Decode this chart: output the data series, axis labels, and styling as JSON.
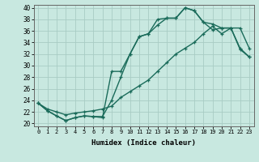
{
  "xlabel": "Humidex (Indice chaleur)",
  "background_color": "#c8e8e0",
  "grid_color": "#a8ccc4",
  "line_color": "#1a6b5a",
  "xlim": [
    -0.5,
    23.5
  ],
  "ylim": [
    19.5,
    40.5
  ],
  "xticks": [
    0,
    1,
    2,
    3,
    4,
    5,
    6,
    7,
    8,
    9,
    10,
    11,
    12,
    13,
    14,
    15,
    16,
    17,
    18,
    19,
    20,
    21,
    22,
    23
  ],
  "yticks": [
    20,
    22,
    24,
    26,
    28,
    30,
    32,
    34,
    36,
    38,
    40
  ],
  "curve1_x": [
    0,
    1,
    2,
    3,
    4,
    5,
    6,
    7,
    8,
    9,
    10,
    11,
    12,
    13,
    14,
    15,
    16,
    17,
    18,
    19,
    20,
    21,
    22,
    23
  ],
  "curve1_y": [
    23.5,
    22.2,
    21.3,
    20.5,
    21.0,
    21.3,
    21.2,
    21.2,
    24.0,
    28.0,
    32.0,
    35.0,
    35.5,
    37.0,
    38.2,
    38.2,
    40.0,
    39.5,
    37.5,
    37.2,
    36.5,
    36.5,
    36.5,
    33.0
  ],
  "curve2_x": [
    0,
    1,
    2,
    3,
    4,
    5,
    6,
    7,
    8,
    9,
    10,
    11,
    12,
    13,
    14,
    15,
    16,
    17,
    18,
    19,
    20,
    21,
    22,
    23
  ],
  "curve2_y": [
    23.5,
    22.2,
    21.3,
    20.5,
    21.0,
    21.3,
    21.2,
    21.0,
    29.0,
    29.0,
    32.0,
    35.0,
    35.5,
    38.0,
    38.2,
    38.2,
    40.0,
    39.5,
    37.5,
    36.2,
    36.5,
    36.5,
    33.0,
    31.5
  ],
  "curve3_x": [
    0,
    1,
    2,
    3,
    4,
    5,
    6,
    7,
    8,
    9,
    10,
    11,
    12,
    13,
    14,
    15,
    16,
    17,
    18,
    19,
    20,
    21,
    22,
    23
  ],
  "curve3_y": [
    23.5,
    22.5,
    22.0,
    21.5,
    21.8,
    22.0,
    22.2,
    22.5,
    23.0,
    24.5,
    25.5,
    26.5,
    27.5,
    29.0,
    30.5,
    32.0,
    33.0,
    34.0,
    35.5,
    36.8,
    35.5,
    36.5,
    32.8,
    31.5
  ]
}
